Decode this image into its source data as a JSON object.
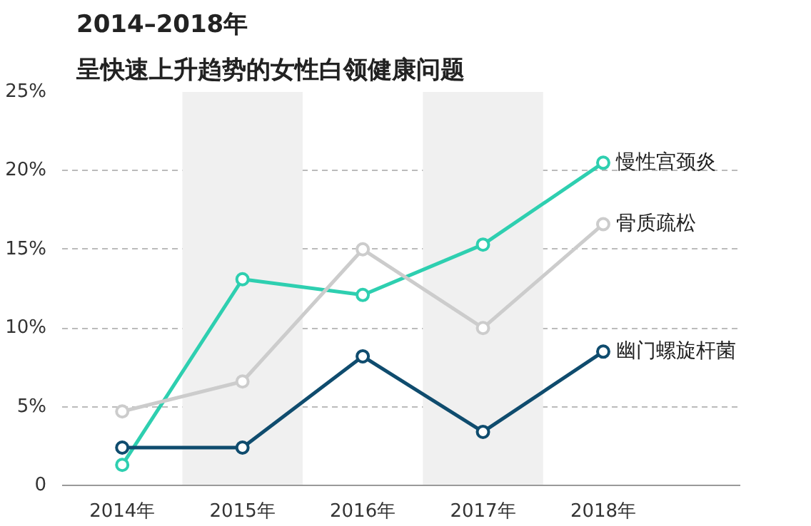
{
  "chart_data": {
    "type": "line",
    "title": "2014–2018年",
    "subtitle": "呈快速上升趋势的女性白领健康问题",
    "x": [
      2014,
      2015,
      2016,
      2017,
      2018
    ],
    "xlim": [
      2013.5,
      2019.14
    ],
    "xticks": [
      {
        "value": 2014,
        "label": "2014年"
      },
      {
        "value": 2015,
        "label": "2015年"
      },
      {
        "value": 2016,
        "label": "2016年"
      },
      {
        "value": 2017,
        "label": "2017年"
      },
      {
        "value": 2018,
        "label": "2018年"
      }
    ],
    "ylim": [
      0,
      25
    ],
    "yticks": [
      {
        "value": 0,
        "label": "0"
      },
      {
        "value": 5,
        "label": "5%"
      },
      {
        "value": 10,
        "label": "10%"
      },
      {
        "value": 15,
        "label": "15%"
      },
      {
        "value": 20,
        "label": "20%"
      },
      {
        "value": 25,
        "label": "25%"
      }
    ],
    "series": [
      {
        "name": "慢性宫颈炎",
        "color": "#2ecfb0",
        "values": [
          1.3,
          13.1,
          12.1,
          15.3,
          20.5
        ]
      },
      {
        "name": "骨质疏松",
        "color": "#cccccc",
        "values": [
          4.7,
          6.6,
          15.0,
          10.0,
          16.6
        ]
      },
      {
        "name": "幽门螺旋杆菌",
        "color": "#0f4c6e",
        "values": [
          2.4,
          2.4,
          8.2,
          3.4,
          8.5
        ]
      }
    ],
    "bands": [
      {
        "axis": "x",
        "from": 2014.5,
        "to": 2015.5,
        "color": "#f0f0f0"
      },
      {
        "axis": "x",
        "from": 2016.5,
        "to": 2017.5,
        "color": "#f0f0f0"
      }
    ],
    "grid": "y",
    "marker": "circle",
    "line_style": "solid",
    "legend": false
  }
}
